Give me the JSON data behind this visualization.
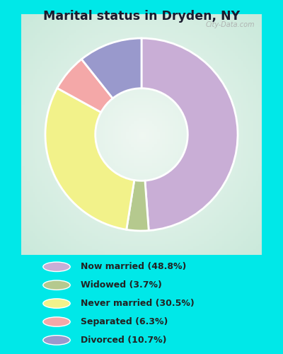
{
  "title": "Marital status in Dryden, NY",
  "slices": [
    {
      "label": "Now married (48.8%)",
      "value": 48.8,
      "color": "#c9aed6"
    },
    {
      "label": "Widowed (3.7%)",
      "value": 3.7,
      "color": "#b5c98e"
    },
    {
      "label": "Never married (30.5%)",
      "value": 30.5,
      "color": "#f2f28a"
    },
    {
      "label": "Separated (6.3%)",
      "value": 6.3,
      "color": "#f4a8a8"
    },
    {
      "label": "Divorced (10.7%)",
      "value": 10.7,
      "color": "#9999cc"
    }
  ],
  "bg_color": "#00e8e8",
  "chart_bg_grad_outer": "#c8e8d8",
  "chart_bg_grad_inner": "#f0f8f4",
  "watermark": "City-Data.com",
  "title_color": "#1a1a2e",
  "legend_text_color": "#222222",
  "donut_width": 0.52,
  "start_angle": 90,
  "chart_area": [
    0.03,
    0.28,
    0.94,
    0.68
  ],
  "legend_area": [
    0.0,
    0.0,
    1.0,
    0.28
  ]
}
